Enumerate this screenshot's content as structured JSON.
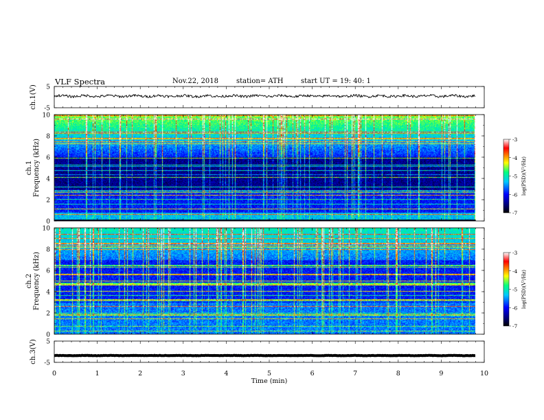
{
  "header": {
    "title": "VLF  Spectra",
    "date": "Nov.22, 2018",
    "station": "station= ATH",
    "start": "start  UT  =    19: 40: 1"
  },
  "chart_data": [
    {
      "type": "line",
      "name": "ch1-waveform",
      "ylabel": "ch.1(V)",
      "ylim": [
        -5,
        5
      ],
      "yticks": [
        "5",
        "-5"
      ],
      "xlim": [
        0,
        10
      ],
      "trace": {
        "approx_level": 0.5,
        "amplitude": 0.6,
        "end_time": 9.8
      }
    },
    {
      "type": "heatmap",
      "name": "ch1-spectrogram",
      "ylabel": "ch.1\nFrequency  (kHz)",
      "ylim": [
        0,
        10
      ],
      "yticks": [
        "0",
        "2",
        "4",
        "6",
        "8",
        "10"
      ],
      "xlim": [
        0,
        10
      ],
      "data_end_time": 9.8,
      "colorbar": {
        "label": "log(PSD)(V²/Hz)",
        "range": [
          -7,
          -3
        ],
        "ticks": [
          "-3",
          "-4",
          "-5",
          "-6",
          "-7"
        ]
      }
    },
    {
      "type": "heatmap",
      "name": "ch2-spectrogram",
      "ylabel": "ch.2\nFrequency  (kHz)",
      "ylim": [
        0,
        10
      ],
      "yticks": [
        "0",
        "2",
        "4",
        "6",
        "8",
        "10"
      ],
      "xlim": [
        0,
        10
      ],
      "data_end_time": 9.8,
      "colorbar": {
        "label": "log(PSD)(V²/Hz)",
        "range": [
          -7,
          -3
        ],
        "ticks": [
          "-3",
          "-4",
          "-5",
          "-6",
          "-7"
        ]
      }
    },
    {
      "type": "line",
      "name": "ch3-waveform",
      "ylabel": "ch.3(V)",
      "ylim": [
        -5,
        5
      ],
      "yticks": [
        "5",
        "-5"
      ],
      "xlim": [
        0,
        10
      ],
      "trace": {
        "approx_level": -1.8,
        "amplitude": 0.1,
        "end_time": 9.8
      }
    }
  ],
  "xaxis": {
    "label": "Time  (min)",
    "ticks": [
      "0",
      "1",
      "2",
      "3",
      "4",
      "5",
      "6",
      "7",
      "8",
      "9",
      "10"
    ]
  }
}
